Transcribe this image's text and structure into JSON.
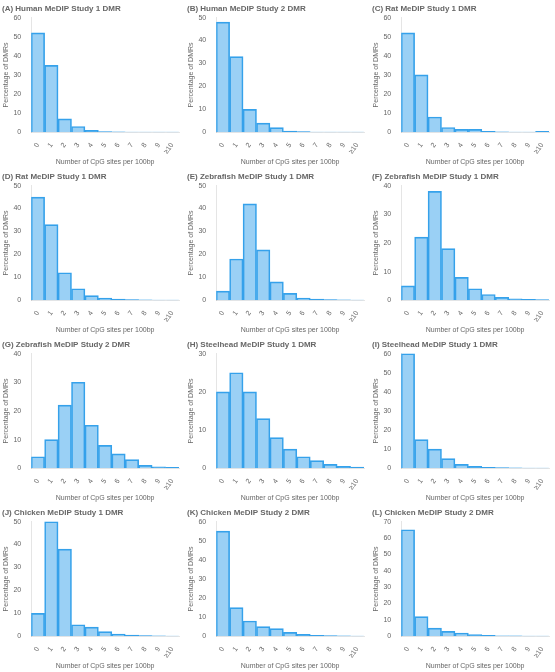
{
  "chart_data": [
    {
      "type": "bar",
      "title": "(A) Human MeDIP Study 1 DMR",
      "xlabel": "Number of CpG sites per 100bp",
      "ylabel": "Percentage of DMRs",
      "categories": [
        "0",
        "1",
        "2",
        "3",
        "4",
        "5",
        "6",
        "7",
        "8",
        "9",
        "≥10"
      ],
      "values": [
        52,
        35,
        7,
        3,
        1,
        0.3,
        0.2,
        0.1,
        0.1,
        0.1,
        0.1
      ],
      "ylim": [
        0,
        60
      ],
      "yticks": [
        0,
        10,
        20,
        30,
        40,
        50,
        60
      ],
      "grid": false
    },
    {
      "type": "bar",
      "title": "(B) Human MeDIP Study 2 DMR",
      "xlabel": "Number of CpG sites per 100bp",
      "ylabel": "Percentage of DMRs",
      "categories": [
        "0",
        "1",
        "2",
        "3",
        "4",
        "5",
        "6",
        "7",
        "8",
        "9",
        "≥10"
      ],
      "values": [
        48,
        33,
        10,
        4,
        2,
        0.5,
        0.3,
        0.1,
        0.1,
        0.1,
        0.1
      ],
      "ylim": [
        0,
        50
      ],
      "yticks": [
        0,
        10,
        20,
        30,
        40,
        50
      ],
      "grid": false
    },
    {
      "type": "bar",
      "title": "(C) Rat MeDIP Study 1 DMR",
      "xlabel": "Number of CpG sites per 100bp",
      "ylabel": "Percentage of DMRs",
      "categories": [
        "0",
        "1",
        "2",
        "3",
        "4",
        "5",
        "6",
        "7",
        "8",
        "9",
        "≥10"
      ],
      "values": [
        52,
        30,
        8,
        2.5,
        1.5,
        1.5,
        0.5,
        0.2,
        0.1,
        0.1,
        0.5
      ],
      "ylim": [
        0,
        60
      ],
      "yticks": [
        0,
        10,
        20,
        30,
        40,
        50,
        60
      ],
      "grid": false
    },
    {
      "type": "bar",
      "title": "(D) Rat MeDIP Study 1 DMR",
      "xlabel": "Number of CpG sites per 100bp",
      "ylabel": "Percentage of DMRs",
      "categories": [
        "0",
        "1",
        "2",
        "3",
        "4",
        "5",
        "6",
        "7",
        "8",
        "9",
        "≥10"
      ],
      "values": [
        45,
        33,
        12,
        5,
        2,
        1,
        0.5,
        0.3,
        0.2,
        0.1,
        0.1
      ],
      "ylim": [
        0,
        50
      ],
      "yticks": [
        0,
        10,
        20,
        30,
        40,
        50
      ],
      "grid": false
    },
    {
      "type": "bar",
      "title": "(E) Zebrafish MeDIP Study 1 DMR",
      "xlabel": "Number of CpG sites per 100bp",
      "ylabel": "Percentage of DMRs",
      "categories": [
        "0",
        "1",
        "2",
        "3",
        "4",
        "5",
        "6",
        "7",
        "8",
        "9",
        "≥10"
      ],
      "values": [
        4,
        18,
        42,
        22,
        8,
        3,
        1,
        0.5,
        0.3,
        0.2,
        0.1
      ],
      "ylim": [
        0,
        50
      ],
      "yticks": [
        0,
        10,
        20,
        30,
        40,
        50
      ],
      "grid": false
    },
    {
      "type": "bar",
      "title": "(F) Zebrafish MeDIP Study 1 DMR",
      "xlabel": "Number of CpG sites per 100bp",
      "ylabel": "Percentage of DMRs",
      "categories": [
        "0",
        "1",
        "2",
        "3",
        "4",
        "5",
        "6",
        "7",
        "8",
        "9",
        "≥10"
      ],
      "values": [
        5,
        22,
        38,
        18,
        8,
        4,
        2,
        1,
        0.5,
        0.3,
        0.2
      ],
      "ylim": [
        0,
        40
      ],
      "yticks": [
        0,
        10,
        20,
        30,
        40
      ],
      "grid": false
    },
    {
      "type": "bar",
      "title": "(G) Zebrafish MeDIP Study 2 DMR",
      "xlabel": "Number of CpG sites per 100bp",
      "ylabel": "Percentage of DMRs",
      "categories": [
        "0",
        "1",
        "2",
        "3",
        "4",
        "5",
        "6",
        "7",
        "8",
        "9",
        "≥10"
      ],
      "values": [
        4,
        10,
        22,
        30,
        15,
        8,
        5,
        3,
        1,
        0.5,
        0.3
      ],
      "ylim": [
        0,
        40
      ],
      "yticks": [
        0,
        10,
        20,
        30,
        40
      ],
      "grid": false
    },
    {
      "type": "bar",
      "title": "(H) Steelhead MeDIP Study 1 DMR",
      "xlabel": "Number of CpG sites per 100bp",
      "ylabel": "Percentage of DMRs",
      "categories": [
        "0",
        "1",
        "2",
        "3",
        "4",
        "5",
        "6",
        "7",
        "8",
        "9",
        "≥10"
      ],
      "values": [
        20,
        25,
        20,
        13,
        8,
        5,
        3,
        2,
        1,
        0.5,
        0.3
      ],
      "ylim": [
        0,
        30
      ],
      "yticks": [
        0,
        10,
        20,
        30
      ],
      "grid": false
    },
    {
      "type": "bar",
      "title": "(I) Steelhead MeDIP Study 1 DMR",
      "xlabel": "Number of CpG sites per 100bp",
      "ylabel": "Percentage of DMRs",
      "categories": [
        "0",
        "1",
        "2",
        "3",
        "4",
        "5",
        "6",
        "7",
        "8",
        "9",
        "≥10"
      ],
      "values": [
        60,
        15,
        10,
        5,
        2,
        1,
        0.5,
        0.3,
        0.2,
        0.1,
        0.1
      ],
      "ylim": [
        0,
        60
      ],
      "yticks": [
        0,
        10,
        20,
        30,
        40,
        50,
        60
      ],
      "grid": false
    },
    {
      "type": "bar",
      "title": "(J) Chicken MeDIP Study 1 DMR",
      "xlabel": "Number of CpG sites per 100bp",
      "ylabel": "Percentage of DMRs",
      "categories": [
        "0",
        "1",
        "2",
        "3",
        "4",
        "5",
        "6",
        "7",
        "8",
        "9",
        "≥10"
      ],
      "values": [
        10,
        50,
        38,
        5,
        4,
        2,
        1,
        0.5,
        0.3,
        0.2,
        0.1
      ],
      "ylim": [
        0,
        50
      ],
      "yticks": [
        0,
        10,
        20,
        30,
        40,
        50
      ],
      "grid": false
    },
    {
      "type": "bar",
      "title": "(K) Chicken MeDIP Study 2 DMR",
      "xlabel": "Number of CpG sites per 100bp",
      "ylabel": "Percentage of DMRs",
      "categories": [
        "0",
        "1",
        "2",
        "3",
        "4",
        "5",
        "6",
        "7",
        "8",
        "9",
        "≥10"
      ],
      "values": [
        55,
        15,
        8,
        5,
        4,
        2,
        1,
        0.5,
        0.3,
        0.2,
        0.1
      ],
      "ylim": [
        0,
        60
      ],
      "yticks": [
        0,
        10,
        20,
        30,
        40,
        50,
        60
      ],
      "grid": false
    },
    {
      "type": "bar",
      "title": "(L) Chicken MeDIP Study 2 DMR",
      "xlabel": "Number of CpG sites per 100bp",
      "ylabel": "Percentage of DMRs",
      "categories": [
        "0",
        "1",
        "2",
        "3",
        "4",
        "5",
        "6",
        "7",
        "8",
        "9",
        "≥10"
      ],
      "values": [
        65,
        12,
        5,
        3,
        2,
        1,
        0.5,
        0.3,
        0.2,
        0.1,
        0.1
      ],
      "ylim": [
        0,
        70
      ],
      "yticks": [
        0,
        10,
        20,
        30,
        40,
        50,
        60,
        70
      ],
      "grid": false
    }
  ]
}
